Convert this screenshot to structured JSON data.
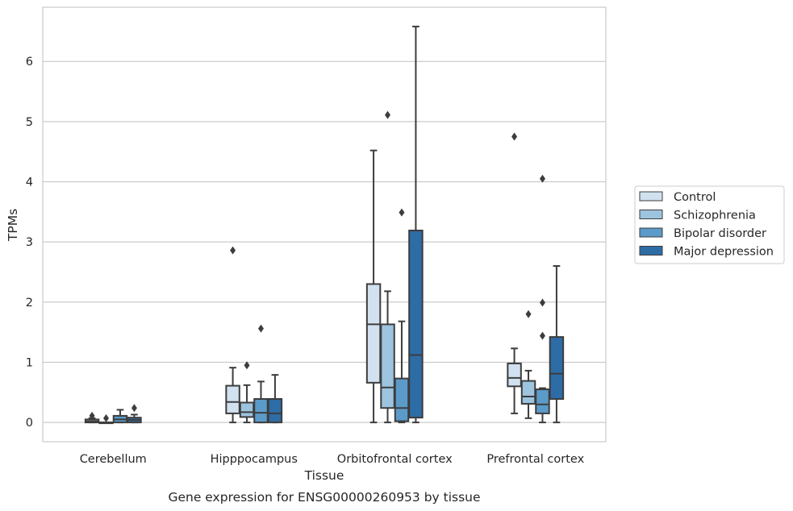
{
  "caption": "Gene expression for ENSG00000260953 by tissue",
  "chart_data": {
    "type": "boxplot",
    "xlabel": "Tissue",
    "ylabel": "TPMs",
    "ylim": [
      -0.32,
      6.9
    ],
    "yticks": [
      0,
      1,
      2,
      3,
      4,
      5,
      6
    ],
    "grid": "horizontal",
    "legend_position": "right",
    "categories": [
      "Cerebellum",
      "Hipppocampus",
      "Orbitofrontal cortex",
      "Prefrontal cortex"
    ],
    "series": [
      {
        "name": "Control",
        "color": "#d1e1f0",
        "boxes": [
          {
            "whisker_low": 0,
            "q1": 0.0,
            "median": 0.02,
            "q3": 0.05,
            "whisker_high": 0.07,
            "outliers": [
              0.11
            ]
          },
          {
            "whisker_low": 0,
            "q1": 0.15,
            "median": 0.34,
            "q3": 0.61,
            "whisker_high": 0.91,
            "outliers": [
              2.86
            ]
          },
          {
            "whisker_low": 0,
            "q1": 0.66,
            "median": 1.63,
            "q3": 2.3,
            "whisker_high": 4.52,
            "outliers": []
          },
          {
            "whisker_low": 0.15,
            "q1": 0.6,
            "median": 0.74,
            "q3": 0.98,
            "whisker_high": 1.23,
            "outliers": [
              4.75
            ]
          }
        ]
      },
      {
        "name": "Schizophrenia",
        "color": "#9dc4df",
        "boxes": [
          {
            "whisker_low": 0,
            "q1": 0.0,
            "median": 0.0,
            "q3": 0.0,
            "whisker_high": 0.0,
            "outliers": [
              0.07
            ]
          },
          {
            "whisker_low": 0,
            "q1": 0.09,
            "median": 0.17,
            "q3": 0.33,
            "whisker_high": 0.62,
            "outliers": [
              0.95
            ]
          },
          {
            "whisker_low": 0,
            "q1": 0.24,
            "median": 0.58,
            "q3": 1.63,
            "whisker_high": 2.18,
            "outliers": [
              5.11
            ]
          },
          {
            "whisker_low": 0.07,
            "q1": 0.31,
            "median": 0.43,
            "q3": 0.69,
            "whisker_high": 0.86,
            "outliers": [
              1.8
            ]
          }
        ]
      },
      {
        "name": "Bipolar disorder",
        "color": "#5b9bc9",
        "boxes": [
          {
            "whisker_low": 0,
            "q1": 0.0,
            "median": 0.05,
            "q3": 0.11,
            "whisker_high": 0.21,
            "outliers": []
          },
          {
            "whisker_low": 0,
            "q1": 0.0,
            "median": 0.16,
            "q3": 0.39,
            "whisker_high": 0.68,
            "outliers": [
              1.56
            ]
          },
          {
            "whisker_low": 0,
            "q1": 0.02,
            "median": 0.24,
            "q3": 0.73,
            "whisker_high": 1.68,
            "outliers": [
              3.49
            ]
          },
          {
            "whisker_low": 0,
            "q1": 0.15,
            "median": 0.3,
            "q3": 0.55,
            "whisker_high": 0.57,
            "outliers": [
              1.44,
              1.99,
              4.05
            ]
          }
        ]
      },
      {
        "name": "Major depression",
        "color": "#2e6ca6",
        "boxes": [
          {
            "whisker_low": 0,
            "q1": 0.0,
            "median": 0.04,
            "q3": 0.08,
            "whisker_high": 0.13,
            "outliers": [
              0.24
            ]
          },
          {
            "whisker_low": 0,
            "q1": 0.0,
            "median": 0.15,
            "q3": 0.39,
            "whisker_high": 0.79,
            "outliers": []
          },
          {
            "whisker_low": 0,
            "q1": 0.08,
            "median": 1.12,
            "q3": 3.19,
            "whisker_high": 6.58,
            "outliers": []
          },
          {
            "whisker_low": 0,
            "q1": 0.39,
            "median": 0.81,
            "q3": 1.42,
            "whisker_high": 2.6,
            "outliers": []
          }
        ]
      }
    ]
  }
}
